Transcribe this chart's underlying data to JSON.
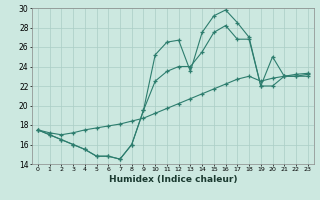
{
  "xlabel": "Humidex (Indice chaleur)",
  "background_color": "#cce8e0",
  "grid_color": "#aacec6",
  "line_color": "#2d7d6e",
  "line1_x": [
    0,
    1,
    2,
    3,
    4,
    5,
    6,
    7,
    8,
    9,
    10,
    11,
    12,
    13,
    14,
    15,
    16,
    17,
    18,
    19,
    20,
    21,
    22,
    23
  ],
  "line1_y": [
    17.5,
    17.0,
    16.5,
    16.0,
    15.5,
    14.8,
    14.8,
    14.5,
    16.0,
    19.5,
    25.2,
    26.5,
    26.7,
    23.5,
    27.5,
    29.2,
    29.8,
    28.5,
    27.0,
    22.0,
    25.0,
    23.0,
    23.0,
    23.2
  ],
  "line2_x": [
    0,
    1,
    2,
    3,
    4,
    5,
    6,
    7,
    8,
    9,
    10,
    11,
    12,
    13,
    14,
    15,
    16,
    17,
    18,
    19,
    20,
    21,
    22,
    23
  ],
  "line2_y": [
    17.5,
    17.0,
    16.5,
    16.0,
    15.5,
    14.8,
    14.8,
    14.5,
    16.0,
    19.5,
    22.5,
    23.5,
    24.0,
    24.0,
    25.5,
    27.5,
    28.2,
    26.8,
    26.8,
    22.0,
    22.0,
    23.0,
    23.0,
    23.0
  ],
  "line3_x": [
    0,
    1,
    2,
    3,
    4,
    5,
    6,
    7,
    8,
    9,
    10,
    11,
    12,
    13,
    14,
    15,
    16,
    17,
    18,
    19,
    20,
    21,
    22,
    23
  ],
  "line3_y": [
    17.5,
    17.2,
    17.0,
    17.2,
    17.5,
    17.7,
    17.9,
    18.1,
    18.4,
    18.7,
    19.2,
    19.7,
    20.2,
    20.7,
    21.2,
    21.7,
    22.2,
    22.7,
    23.0,
    22.5,
    22.8,
    23.0,
    23.2,
    23.3
  ],
  "ylim": [
    14,
    30
  ],
  "yticks": [
    14,
    16,
    18,
    20,
    22,
    24,
    26,
    28,
    30
  ],
  "xticks": [
    0,
    1,
    2,
    3,
    4,
    5,
    6,
    7,
    8,
    9,
    10,
    11,
    12,
    13,
    14,
    15,
    16,
    17,
    18,
    19,
    20,
    21,
    22,
    23
  ]
}
